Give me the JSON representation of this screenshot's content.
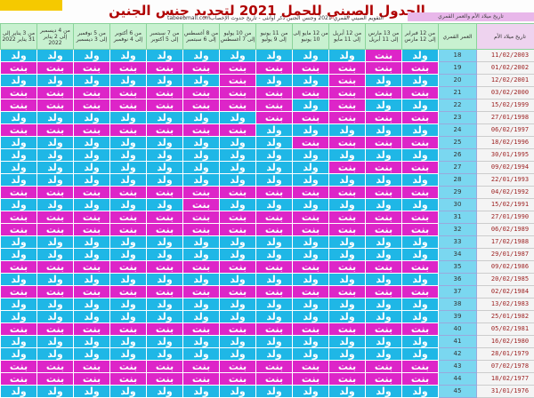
{
  "title": "الجدول الصيني للحمل 2021 لتحديد جنس الجنين",
  "site": "tabeebmall.com",
  "subtitle": "التقويم الصيني القمري 2021 وجنس الجنين ذكر أوأنثى - تاريخ حدوث الإخصاب",
  "corner_label": "تاريخ ميلاد الأم والعمر القمري",
  "header": {
    "date_label": "تاريخ ميلاد الأم",
    "age_label": "العمر القمري",
    "months": [
      "من 12 فبراير إلى 12 مارس",
      "من 13 مارس إلى 11 أبريل",
      "من 12 أبريل إلى 11 مايو",
      "من 12 مايو إلى 10 يونيو",
      "من 11 يونيو إلى 9 يوليو",
      "من 10 يوليو إلى 7 أغسطس",
      "من 8 أغسطس إلى 6 سبتمبر",
      "من 7 سبتمبر إلى 5 أكتوبر",
      "من 6 أكتوبر إلى 4 نوفمبر",
      "من 5 نوفمبر إلى 3 ديسمبر",
      "من 4 ديسمبر إلى 2 يناير 2022",
      "من 3 يناير إلى 31 يناير 2022"
    ]
  },
  "labels": {
    "boy": "ولد",
    "girl": "بنت"
  },
  "colors": {
    "boy": "#1fb7e6",
    "girl": "#dd25c8",
    "title": "#b00000"
  },
  "rows": [
    {
      "date": "11/02/2003",
      "age": "18",
      "pattern": "BGBBBBBBBBBB"
    },
    {
      "date": "01/02/2002",
      "age": "19",
      "pattern": "GGGGGGGGGGGG"
    },
    {
      "date": "12/02/2001",
      "age": "20",
      "pattern": "BBGBBGBBBBBB"
    },
    {
      "date": "03/02/2000",
      "age": "21",
      "pattern": "GGGGGGGGGGGG"
    },
    {
      "date": "15/02/1999",
      "age": "22",
      "pattern": "BBGBGGGGGGGG"
    },
    {
      "date": "27/01/1998",
      "age": "23",
      "pattern": "GGGGGBBBBBBB"
    },
    {
      "date": "06/02/1997",
      "age": "24",
      "pattern": "BBBBBGGGGGGG"
    },
    {
      "date": "18/02/1996",
      "age": "25",
      "pattern": "GGGGBBBBBBBB"
    },
    {
      "date": "30/01/1995",
      "age": "26",
      "pattern": "BBBBBBBBBBBB"
    },
    {
      "date": "09/02/1994",
      "age": "27",
      "pattern": "GGGBBBBBBBBB"
    },
    {
      "date": "22/01/1993",
      "age": "28",
      "pattern": "BBBBBBBBBBBB"
    },
    {
      "date": "04/02/1992",
      "age": "29",
      "pattern": "GGGGGGGGGGGG"
    },
    {
      "date": "15/02/1991",
      "age": "30",
      "pattern": "BBBBBBGBBBBB"
    },
    {
      "date": "27/01/1990",
      "age": "31",
      "pattern": "GGGGGGGGGGGG"
    },
    {
      "date": "06/02/1989",
      "age": "32",
      "pattern": "GGGGGGGGGGGG"
    },
    {
      "date": "17/02/1988",
      "age": "33",
      "pattern": "BBBBBBBBBBBB"
    },
    {
      "date": "29/01/1987",
      "age": "34",
      "pattern": "BBBBBBBBBBBB"
    },
    {
      "date": "09/02/1986",
      "age": "35",
      "pattern": "GGGGGGGGGGGG"
    },
    {
      "date": "20/02/1985",
      "age": "36",
      "pattern": "BBBBBBBBBBBB"
    },
    {
      "date": "02/02/1984",
      "age": "37",
      "pattern": "GGGGGGGGGGGG"
    },
    {
      "date": "13/02/1983",
      "age": "38",
      "pattern": "BBBBBBBBBBBB"
    },
    {
      "date": "25/01/1982",
      "age": "39",
      "pattern": "BBBBBBBBBBBB"
    },
    {
      "date": "05/02/1981",
      "age": "40",
      "pattern": "GGGGGGGGGGGG"
    },
    {
      "date": "16/02/1980",
      "age": "41",
      "pattern": "BBBBBBBBBBBB"
    },
    {
      "date": "28/01/1979",
      "age": "42",
      "pattern": "BBBBBBBBBBBB"
    },
    {
      "date": "07/02/1978",
      "age": "43",
      "pattern": "GGGGGGGGGGGG"
    },
    {
      "date": "18/02/1977",
      "age": "44",
      "pattern": "GGGGGGGGGGGG"
    },
    {
      "date": "31/01/1976",
      "age": "45",
      "pattern": "BBBBBBBBBBBB"
    }
  ]
}
